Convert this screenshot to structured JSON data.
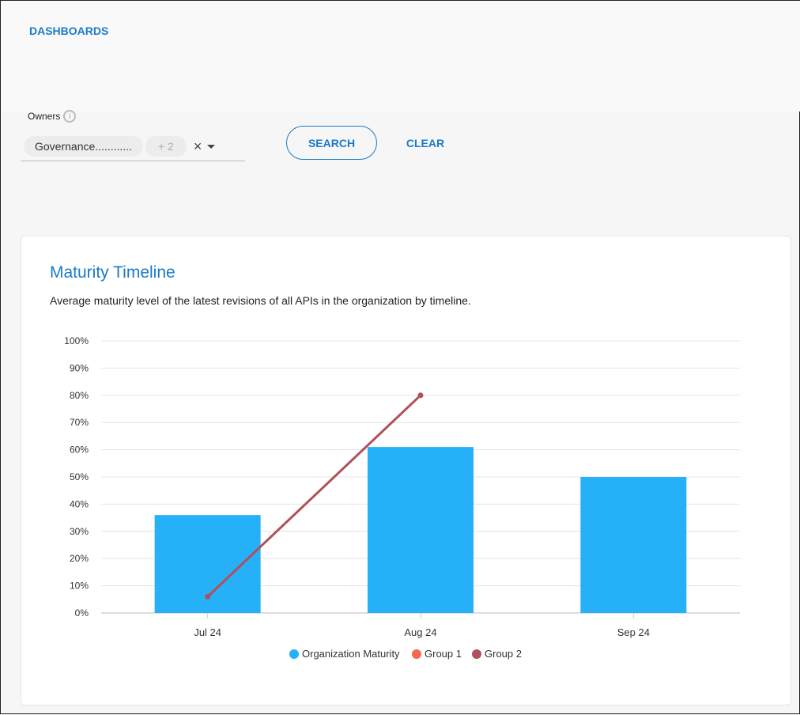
{
  "nav": {
    "dashboards": "DASHBOARDS"
  },
  "filter": {
    "owners_label": "Owners",
    "info_icon": "i",
    "chip": "Governance............",
    "more": "+ 2",
    "clear_icon": "×"
  },
  "buttons": {
    "search": "SEARCH",
    "clear": "CLEAR"
  },
  "card": {
    "title": "Maturity Timeline",
    "subtitle": "Average maturity level of the latest revisions of all APIs in the organization by timeline."
  },
  "colors": {
    "accent": "#1a7bc8",
    "bar": "#26b0f7",
    "group1": "#f5674e",
    "group2": "#b0505a"
  },
  "chart_data": {
    "type": "bar",
    "categories": [
      "Jul 24",
      "Aug 24",
      "Sep 24"
    ],
    "series": [
      {
        "name": "Organization Maturity",
        "type": "bar",
        "values": [
          36,
          61,
          50
        ],
        "color": "#26b0f7"
      },
      {
        "name": "Group 1",
        "type": "line",
        "values": [
          null,
          null,
          null
        ],
        "color": "#f5674e"
      },
      {
        "name": "Group 2",
        "type": "line",
        "values": [
          6,
          80,
          null
        ],
        "color": "#b0505a"
      }
    ],
    "yticks": [
      "0%",
      "10%",
      "20%",
      "30%",
      "40%",
      "50%",
      "60%",
      "70%",
      "80%",
      "90%",
      "100%"
    ],
    "ylim": [
      0,
      100
    ],
    "grid": true,
    "legend": "bottom"
  }
}
